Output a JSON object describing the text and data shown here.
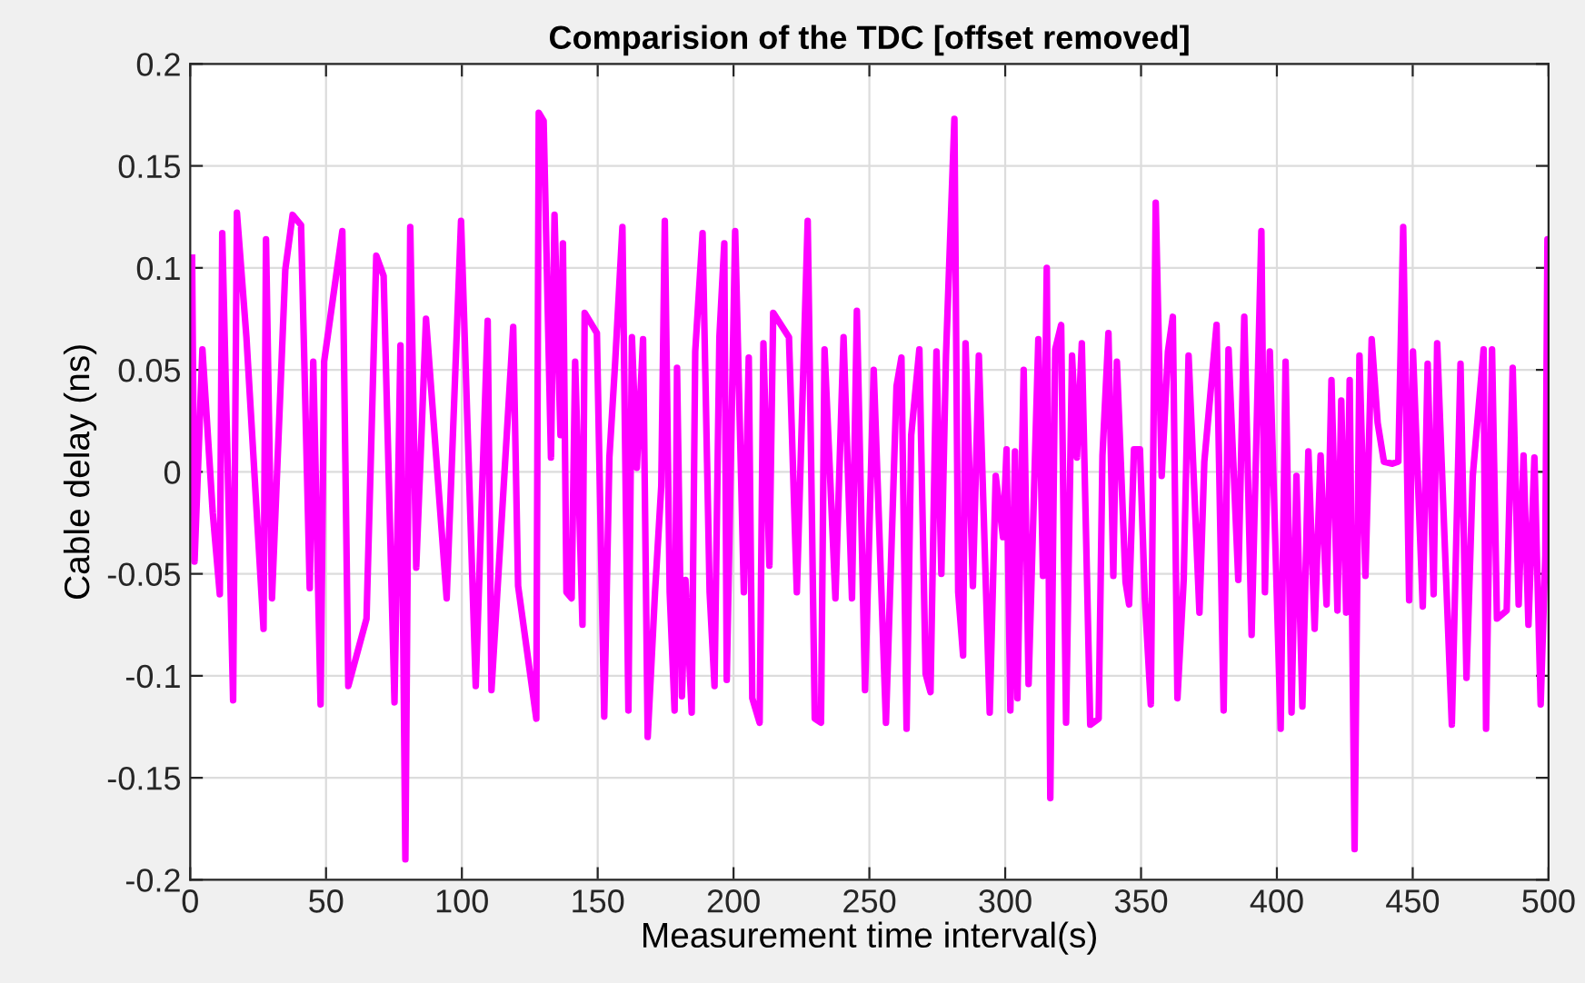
{
  "chart_data": {
    "type": "line",
    "title": "Comparision of the TDC [offset removed]",
    "xlabel": "Measurement time interval(s)",
    "ylabel": "Cable delay (ns)",
    "xlim": [
      0,
      500
    ],
    "xticks": [
      0,
      50,
      100,
      150,
      200,
      250,
      300,
      350,
      400,
      450,
      500
    ],
    "ylim": [
      -0.2,
      0.2
    ],
    "yticks": [
      {
        "value": -0.2,
        "label": "-0.2"
      },
      {
        "value": -0.15,
        "label": "-0.15"
      },
      {
        "value": -0.1,
        "label": "-0.1"
      },
      {
        "value": -0.05,
        "label": "-0.05"
      },
      {
        "value": 0,
        "label": "0"
      },
      {
        "value": 0.05,
        "label": "0.05"
      },
      {
        "value": 0.1,
        "label": "0.1"
      },
      {
        "value": 0.15,
        "label": "0.15"
      },
      {
        "value": 0.2,
        "label": "0.2"
      }
    ],
    "grid": true,
    "marker": "none",
    "line_style": "solid",
    "series": [
      {
        "color": "#ff00ff",
        "x": [
          0.7,
          1.6,
          4.5,
          8.3,
          10.9,
          11.8,
          15.8,
          17.2,
          20.7,
          27.0,
          27.9,
          30.1,
          35.0,
          37.7,
          40.8,
          44.0,
          45.3,
          48.0,
          49.3,
          56.0,
          58.2,
          64.9,
          68.5,
          71.2,
          75.2,
          77.4,
          79.2,
          81.0,
          83.2,
          86.8,
          94.4,
          99.7,
          105.1,
          109.5,
          110.9,
          118.9,
          120.7,
          127.4,
          128.3,
          130.1,
          132.8,
          134.1,
          136.3,
          137.2,
          138.5,
          140.4,
          141.7,
          144.4,
          145.2,
          149.7,
          152.4,
          154.3,
          156.4,
          159.1,
          161.3,
          162.6,
          164.4,
          166.7,
          168.4,
          171.1,
          173.4,
          174.7,
          176.5,
          178.3,
          179.2,
          181.0,
          182.3,
          184.6,
          185.9,
          188.6,
          191.2,
          193.0,
          194.8,
          196.6,
          197.5,
          200.6,
          203.8,
          205.6,
          206.9,
          209.6,
          211.0,
          213.2,
          214.6,
          220.4,
          223.3,
          227.3,
          229.9,
          232.2,
          233.5,
          237.5,
          240.5,
          243.6,
          245.4,
          248.4,
          251.6,
          256.1,
          260.0,
          261.8,
          263.7,
          265.4,
          268.4,
          270.7,
          272.5,
          274.7,
          276.5,
          278.2,
          281.3,
          282.7,
          284.5,
          285.4,
          288.1,
          290.3,
          294.3,
          296.5,
          299.2,
          300.5,
          301.9,
          303.6,
          304.5,
          306.8,
          308.6,
          312.2,
          313.9,
          315.3,
          316.6,
          318.4,
          320.6,
          322.4,
          324.6,
          326.4,
          328.2,
          331.3,
          334.4,
          335.8,
          338.0,
          339.8,
          341.1,
          344.3,
          345.6,
          347.4,
          349.6,
          351.4,
          353.6,
          355.4,
          357.6,
          359.9,
          361.7,
          363.4,
          365.7,
          367.5,
          371.5,
          373.3,
          377.8,
          380.4,
          382.2,
          385.8,
          388.0,
          390.7,
          394.3,
          395.6,
          397.4,
          401.4,
          403.2,
          405.4,
          407.2,
          409.4,
          411.6,
          413.9,
          416.1,
          418.3,
          420.1,
          422.3,
          423.7,
          425.5,
          426.8,
          428.6,
          430.4,
          432.6,
          434.9,
          437.1,
          439.4,
          442.5,
          444.7,
          446.5,
          448.7,
          450.1,
          453.7,
          455.5,
          457.7,
          459.0,
          461.7,
          464.4,
          467.6,
          469.8,
          472.1,
          476.1,
          477.0,
          479.2,
          481.0,
          484.6,
          486.8,
          489.0,
          490.8,
          492.6,
          494.8,
          497.1,
          498.8,
          499.6,
          500
        ],
        "values": [
          0.105,
          -0.044,
          0.06,
          -0.02,
          -0.06,
          0.117,
          -0.112,
          0.127,
          0.066,
          -0.077,
          0.114,
          -0.062,
          0.099,
          0.126,
          0.121,
          -0.057,
          0.054,
          -0.114,
          0.054,
          0.118,
          -0.105,
          -0.072,
          0.106,
          0.096,
          -0.113,
          0.062,
          -0.19,
          0.12,
          -0.047,
          0.075,
          -0.062,
          0.123,
          -0.105,
          0.074,
          -0.107,
          0.071,
          -0.056,
          -0.121,
          0.176,
          0.172,
          0.007,
          0.126,
          0.018,
          0.112,
          -0.059,
          -0.062,
          0.054,
          -0.075,
          0.078,
          0.068,
          -0.12,
          0.007,
          0.053,
          0.12,
          -0.117,
          0.066,
          0.002,
          0.065,
          -0.13,
          -0.059,
          -0.007,
          0.123,
          -0.059,
          -0.117,
          0.051,
          -0.11,
          -0.053,
          -0.118,
          0.059,
          0.117,
          -0.059,
          -0.105,
          0.066,
          0.112,
          -0.102,
          0.118,
          -0.059,
          0.056,
          -0.111,
          -0.123,
          0.063,
          -0.046,
          0.078,
          0.066,
          -0.059,
          0.123,
          -0.121,
          -0.123,
          0.06,
          -0.062,
          0.066,
          -0.062,
          0.079,
          -0.107,
          0.05,
          -0.123,
          0.042,
          0.056,
          -0.126,
          0.018,
          0.06,
          -0.099,
          -0.108,
          0.059,
          -0.05,
          0.057,
          0.173,
          -0.059,
          -0.09,
          0.063,
          -0.056,
          0.057,
          -0.118,
          -0.002,
          -0.032,
          0.011,
          -0.117,
          0.01,
          -0.111,
          0.05,
          -0.104,
          0.065,
          -0.051,
          0.1,
          -0.16,
          0.06,
          0.072,
          -0.123,
          0.057,
          0.007,
          0.063,
          -0.124,
          -0.121,
          0.008,
          0.068,
          -0.051,
          0.054,
          -0.054,
          -0.065,
          0.011,
          0.011,
          -0.062,
          -0.114,
          0.132,
          -0.002,
          0.059,
          0.076,
          -0.111,
          -0.053,
          0.057,
          -0.069,
          0.005,
          0.072,
          -0.117,
          0.06,
          -0.053,
          0.076,
          -0.08,
          0.118,
          -0.059,
          0.059,
          -0.126,
          0.054,
          -0.118,
          -0.002,
          -0.115,
          0.01,
          -0.077,
          0.008,
          -0.065,
          0.045,
          -0.068,
          0.035,
          -0.069,
          0.045,
          -0.185,
          0.057,
          -0.051,
          0.065,
          0.024,
          0.005,
          0.004,
          0.005,
          0.12,
          -0.063,
          0.059,
          -0.066,
          0.053,
          -0.06,
          0.063,
          -0.032,
          -0.124,
          0.053,
          -0.101,
          -0.002,
          0.06,
          -0.126,
          0.06,
          -0.072,
          -0.068,
          0.051,
          -0.065,
          0.008,
          -0.075,
          0.007,
          -0.114,
          -0.041,
          0.114,
          0.01
        ]
      }
    ]
  }
}
